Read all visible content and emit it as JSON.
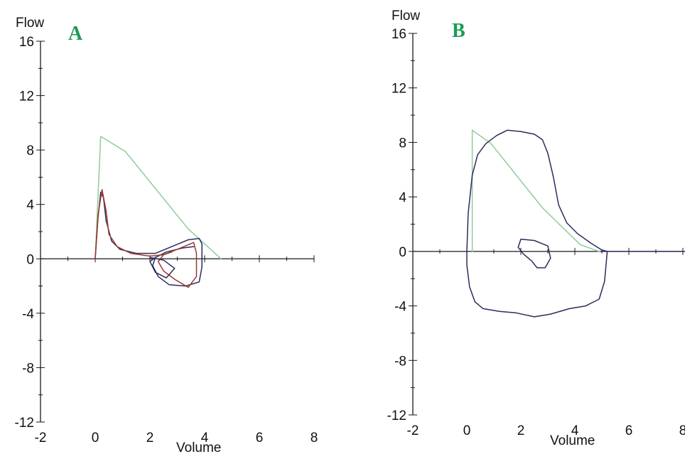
{
  "colors": {
    "axis": "#1a1a1a",
    "predicted": "#8fcc9a",
    "measured": "#2c2c5e",
    "secondary": "#9a3a2c",
    "panel_label": "#1e9a55"
  },
  "chart_data": [
    {
      "type": "line",
      "panel_label": "A",
      "xlabel": "Volume",
      "ylabel": "Flow",
      "xlim": [
        -2,
        8
      ],
      "ylim": [
        -12,
        16
      ],
      "x_ticks": [
        "-2",
        "0",
        "2",
        "4",
        "6",
        "8"
      ],
      "y_ticks": [
        "16",
        "12",
        "8",
        "4",
        "0",
        "-4",
        "-8",
        "-12"
      ],
      "series": [
        {
          "color_key": "predicted",
          "points": [
            [
              0,
              0
            ],
            [
              0.2,
              9
            ],
            [
              1.1,
              7.9
            ],
            [
              3.4,
              2.2
            ],
            [
              4.6,
              0
            ]
          ]
        },
        {
          "color_key": "measured",
          "points": [
            [
              0,
              0
            ],
            [
              0.1,
              3
            ],
            [
              0.2,
              4.9
            ],
            [
              0.3,
              4.5
            ],
            [
              0.4,
              2.8
            ],
            [
              0.6,
              1.3
            ],
            [
              0.9,
              0.7
            ],
            [
              1.5,
              0.4
            ],
            [
              2.2,
              0.4
            ],
            [
              2.8,
              0.9
            ],
            [
              3.4,
              1.4
            ],
            [
              3.8,
              1.5
            ],
            [
              3.9,
              1.1
            ],
            [
              3.9,
              -0.6
            ],
            [
              3.8,
              -1.7
            ],
            [
              3.3,
              -2
            ],
            [
              2.7,
              -1.9
            ],
            [
              2.3,
              -1.3
            ],
            [
              2.1,
              -0.5
            ],
            [
              2.2,
              0.1
            ],
            [
              2.6,
              0.5
            ],
            [
              3.2,
              0.8
            ],
            [
              3.6,
              0.9
            ]
          ]
        },
        {
          "color_key": "secondary",
          "points": [
            [
              0,
              0
            ],
            [
              0.1,
              3.2
            ],
            [
              0.25,
              5.1
            ],
            [
              0.4,
              3.5
            ],
            [
              0.5,
              1.8
            ],
            [
              0.8,
              0.9
            ],
            [
              1.3,
              0.4
            ],
            [
              2,
              0.2
            ],
            [
              2.5,
              0.3
            ],
            [
              3,
              0.7
            ],
            [
              3.6,
              1.2
            ],
            [
              3.7,
              0.4
            ],
            [
              3.7,
              -1.3
            ],
            [
              3.4,
              -2.1
            ],
            [
              2.9,
              -1.5
            ],
            [
              2.5,
              -0.9
            ],
            [
              2.3,
              -0.2
            ],
            [
              2.5,
              0.3
            ],
            [
              2.8,
              0.5
            ]
          ]
        },
        {
          "color_key": "measured",
          "points": [
            [
              2,
              0.1
            ],
            [
              2.5,
              -0.1
            ],
            [
              2.9,
              -0.7
            ],
            [
              2.6,
              -1.4
            ],
            [
              2.2,
              -1
            ],
            [
              2,
              -0.2
            ],
            [
              2.2,
              0.1
            ]
          ]
        }
      ]
    },
    {
      "type": "line",
      "panel_label": "B",
      "xlabel": "Volume",
      "ylabel": "Flow",
      "xlim": [
        -2,
        8
      ],
      "ylim": [
        -12,
        16
      ],
      "x_ticks": [
        "-2",
        "0",
        "2",
        "4",
        "6",
        "8"
      ],
      "y_ticks": [
        "16",
        "12",
        "8",
        "4",
        "0",
        "-4",
        "-8",
        "-12"
      ],
      "series": [
        {
          "color_key": "predicted",
          "points": [
            [
              0.2,
              0
            ],
            [
              0.2,
              8.9
            ],
            [
              0.9,
              7.9
            ],
            [
              2.8,
              3.2
            ],
            [
              4.2,
              0.5
            ],
            [
              4.9,
              0
            ]
          ]
        },
        {
          "color_key": "measured",
          "points": [
            [
              0,
              0
            ],
            [
              0.05,
              2.8
            ],
            [
              0.2,
              5.6
            ],
            [
              0.4,
              7.1
            ],
            [
              0.7,
              7.9
            ],
            [
              1.1,
              8.5
            ],
            [
              1.5,
              8.9
            ],
            [
              2,
              8.8
            ],
            [
              2.5,
              8.6
            ],
            [
              2.8,
              8.2
            ],
            [
              3,
              7.2
            ],
            [
              3.2,
              5.5
            ],
            [
              3.4,
              3.4
            ],
            [
              3.7,
              2.1
            ],
            [
              4.1,
              1.3
            ],
            [
              4.6,
              0.6
            ],
            [
              5,
              0.1
            ],
            [
              5.2,
              0
            ],
            [
              5.1,
              -2.2
            ],
            [
              4.9,
              -3.5
            ],
            [
              4.4,
              -4
            ],
            [
              3.8,
              -4.2
            ],
            [
              3.1,
              -4.6
            ],
            [
              2.5,
              -4.8
            ],
            [
              1.8,
              -4.5
            ],
            [
              1.2,
              -4.4
            ],
            [
              0.6,
              -4.2
            ],
            [
              0.3,
              -3.7
            ],
            [
              0.1,
              -2.6
            ],
            [
              0,
              -1
            ],
            [
              0,
              0
            ]
          ]
        },
        {
          "color_key": "measured",
          "points": [
            [
              2,
              0.9
            ],
            [
              2.5,
              0.8
            ],
            [
              3,
              0.4
            ],
            [
              3.1,
              -0.5
            ],
            [
              2.9,
              -1.2
            ],
            [
              2.6,
              -1.2
            ],
            [
              2.4,
              -0.7
            ],
            [
              2.1,
              -0.2
            ],
            [
              1.9,
              0.3
            ],
            [
              2,
              0.9
            ]
          ]
        },
        {
          "color_key": "measured",
          "points": [
            [
              5,
              0
            ],
            [
              8.2,
              0
            ]
          ]
        }
      ]
    }
  ]
}
